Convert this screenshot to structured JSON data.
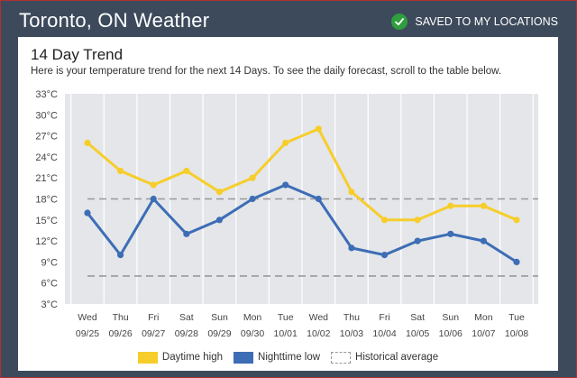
{
  "header": {
    "title": "Toronto, ON Weather",
    "saved_label": "SAVED TO MY LOCATIONS"
  },
  "card": {
    "title": "14 Day Trend",
    "subtitle": "Here is your temperature trend for the next 14 Days. To see the daily forecast, scroll to the table below."
  },
  "colors": {
    "day": "#f7cd2b",
    "night": "#3d6db5",
    "historical": "#999999",
    "plot_bg": "#e4e6ea",
    "check": "#2e9e3e"
  },
  "icons": {
    "saved": "check-circle-icon"
  },
  "chart_data": {
    "type": "line",
    "y_ticks": [
      "33°C",
      "30°C",
      "27°C",
      "24°C",
      "21°C",
      "18°C",
      "15°C",
      "12°C",
      "9°C",
      "6°C",
      "3°C"
    ],
    "ylim": [
      3,
      33
    ],
    "days": [
      "Wed",
      "Thu",
      "Fri",
      "Sat",
      "Sun",
      "Mon",
      "Tue",
      "Wed",
      "Thu",
      "Fri",
      "Sat",
      "Sun",
      "Mon",
      "Tue"
    ],
    "dates": [
      "09/25",
      "09/26",
      "09/27",
      "09/28",
      "09/29",
      "09/30",
      "10/01",
      "10/02",
      "10/03",
      "10/04",
      "10/05",
      "10/06",
      "10/07",
      "10/08"
    ],
    "series": [
      {
        "name": "Daytime high",
        "values": [
          26,
          22,
          20,
          22,
          19,
          21,
          26,
          28,
          19,
          15,
          15,
          17,
          17,
          15
        ]
      },
      {
        "name": "Nighttime low",
        "values": [
          16,
          10,
          18,
          13,
          15,
          18,
          20,
          18,
          11,
          10,
          12,
          13,
          12,
          9
        ]
      }
    ],
    "historical_average": {
      "name": "Historical average",
      "high": 18,
      "low": 7
    },
    "legend_position": "bottom"
  }
}
